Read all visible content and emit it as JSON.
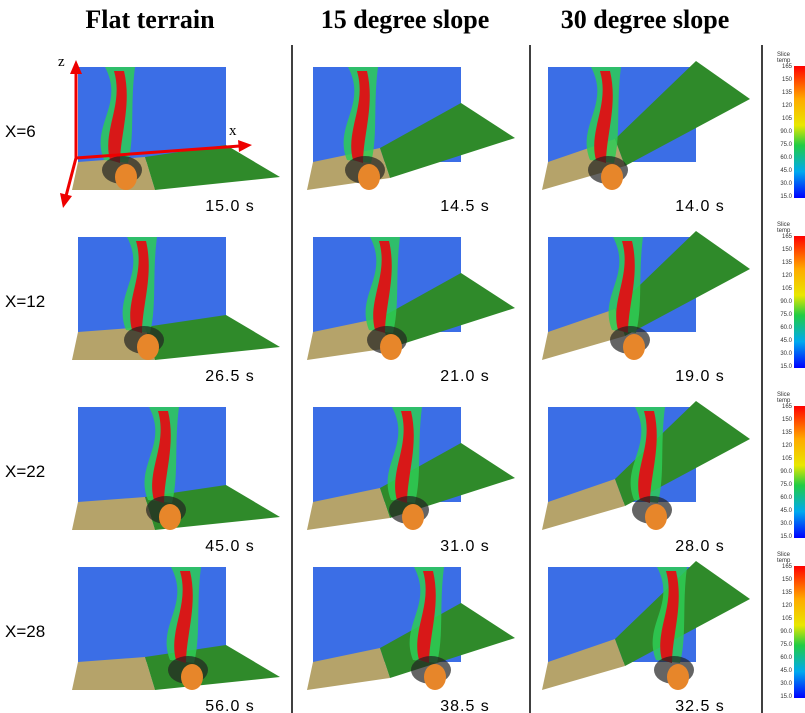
{
  "headers": [
    "Flat terrain",
    "15 degree slope",
    "30 degree slope"
  ],
  "rows": [
    {
      "label": "X=6",
      "times": [
        "15.0 s",
        "14.5 s",
        "14.0 s"
      ]
    },
    {
      "label": "X=12",
      "times": [
        "26.5 s",
        "21.0 s",
        "19.0 s"
      ]
    },
    {
      "label": "X=22",
      "times": [
        "45.0 s",
        "31.0 s",
        "28.0 s"
      ]
    },
    {
      "label": "X=28",
      "times": [
        "56.0 s",
        "38.5 s",
        "32.5 s"
      ]
    }
  ],
  "axes": {
    "z": "z",
    "x": "x"
  },
  "colorbar": {
    "title": "Slice",
    "subtitle": "temp",
    "ticks": [
      "165",
      "150",
      "135",
      "120",
      "105",
      "90.0",
      "75.0",
      "60.0",
      "45.0",
      "30.0",
      "15.0"
    ]
  }
}
